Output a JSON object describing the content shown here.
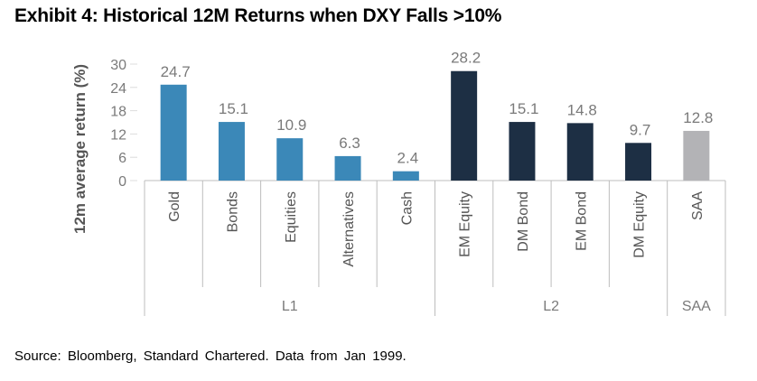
{
  "title": "Exhibit 4: Historical 12M Returns when DXY Falls >10%",
  "source": "Source: Bloomberg, Standard Chartered. Data from Jan 1999.",
  "colors": {
    "L1": "#3b88b8",
    "L2": "#1d2f44",
    "SAA": "#b3b3b6"
  },
  "chart_data": {
    "type": "bar",
    "title": "Exhibit 4: Historical 12M Returns when DXY Falls >10%",
    "ylabel": "12m average return (%)",
    "xlabel": "",
    "ylim": [
      0,
      30
    ],
    "yticks": [
      0,
      6,
      12,
      18,
      24,
      30
    ],
    "grid": false,
    "categories": [
      "Gold",
      "Bonds",
      "Equities",
      "Alternatives",
      "Cash",
      "EM Equity",
      "DM Bond",
      "EM Bond",
      "DM Equity",
      "SAA"
    ],
    "values": [
      24.7,
      15.1,
      10.9,
      6.3,
      2.4,
      28.2,
      15.1,
      14.8,
      9.7,
      12.8
    ],
    "value_labels": [
      "24.7",
      "15.1",
      "10.9",
      "6.3",
      "2.4",
      "28.2",
      "15.1",
      "14.8",
      "9.7",
      "12.8"
    ],
    "groups": [
      {
        "label": "L1",
        "count": 5
      },
      {
        "label": "L2",
        "count": 4
      },
      {
        "label": "SAA",
        "count": 1
      }
    ]
  }
}
